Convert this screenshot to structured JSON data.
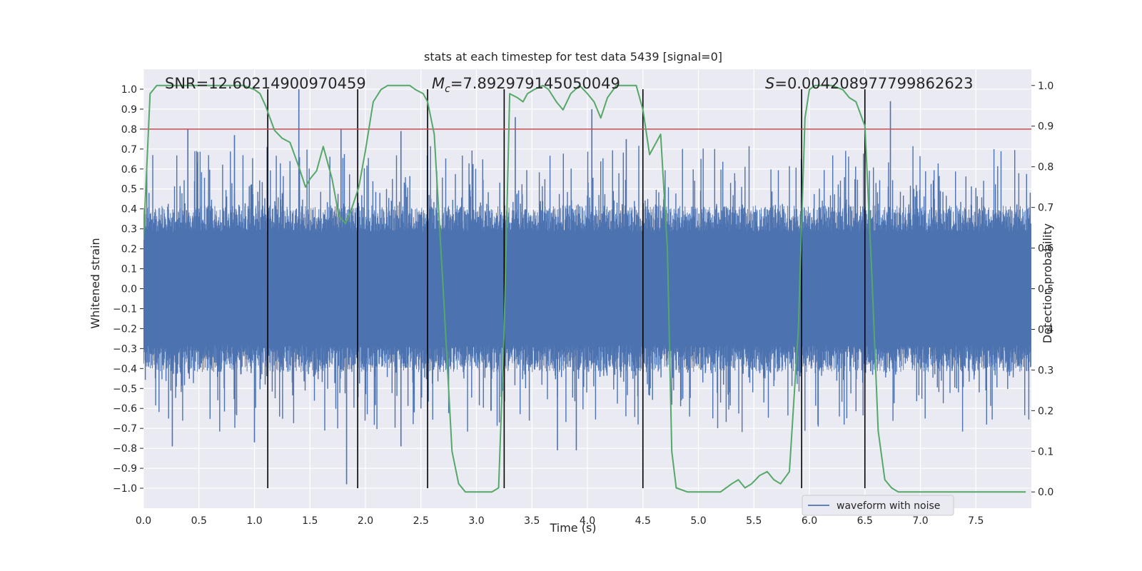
{
  "chart_data": {
    "type": "line",
    "title": "stats at each timestep for test data 5439 [signal=0]",
    "xlabel": "Time (s)",
    "ylabel": "Whitened strain",
    "y2label": "Detection probability",
    "xlim": [
      0,
      8
    ],
    "ylim": [
      -1.1,
      1.1
    ],
    "y2lim": [
      -0.04,
      1.04
    ],
    "x_ticks": [
      0.0,
      0.5,
      1.0,
      1.5,
      2.0,
      2.5,
      3.0,
      3.5,
      4.0,
      4.5,
      5.0,
      5.5,
      6.0,
      6.5,
      7.0,
      7.5
    ],
    "y_ticks": [
      -1.0,
      -0.9,
      -0.8,
      -0.7,
      -0.6,
      -0.5,
      -0.4,
      -0.3,
      -0.2,
      -0.1,
      0.0,
      0.1,
      0.2,
      0.3,
      0.4,
      0.5,
      0.6,
      0.7,
      0.8,
      0.9,
      1.0
    ],
    "y2_ticks": [
      0.0,
      0.1,
      0.2,
      0.3,
      0.4,
      0.5,
      0.6,
      0.7,
      0.8,
      0.9,
      1.0
    ],
    "grid": true,
    "legend": {
      "position": "lower-right",
      "entries": [
        "waveform with noise"
      ]
    },
    "annotations": {
      "snr": "SNR=12.60214900970459",
      "mc_symbol": "M",
      "mc_sub": "c",
      "mc_value": "=7.892979145050049",
      "s_symbol": "S",
      "s_value": "=0.004208977799862623"
    },
    "threshold": 0.8,
    "vlines": [
      1.12,
      1.93,
      2.56,
      3.25,
      4.5,
      5.93,
      6.5
    ],
    "series": [
      {
        "name": "waveform with noise",
        "color": "#4c72b0",
        "kind": "noise",
        "core_amplitude": 0.38,
        "peaks": [
          {
            "x": 0.4,
            "y": 0.8
          },
          {
            "x": 0.82,
            "y": 0.77
          },
          {
            "x": 1.4,
            "y": 1.0
          },
          {
            "x": 1.78,
            "y": 0.8
          },
          {
            "x": 2.32,
            "y": 0.79
          },
          {
            "x": 3.35,
            "y": 0.86
          },
          {
            "x": 4.04,
            "y": 0.9
          },
          {
            "x": 4.35,
            "y": 0.75
          },
          {
            "x": 6.73,
            "y": 0.94
          },
          {
            "x": 0.26,
            "y": -0.79
          },
          {
            "x": 1.0,
            "y": -0.77
          },
          {
            "x": 1.83,
            "y": -0.98
          },
          {
            "x": 2.32,
            "y": -0.79
          },
          {
            "x": 3.73,
            "y": -0.81
          },
          {
            "x": 3.9,
            "y": -0.81
          },
          {
            "x": 4.5,
            "y": -0.98
          }
        ]
      },
      {
        "name": "detection probability",
        "color": "#55a868",
        "axis": "right",
        "x": [
          0.0,
          0.06,
          0.12,
          0.2,
          0.3,
          0.4,
          0.5,
          0.6,
          0.7,
          0.8,
          0.9,
          1.0,
          1.05,
          1.1,
          1.18,
          1.25,
          1.32,
          1.4,
          1.46,
          1.5,
          1.56,
          1.62,
          1.7,
          1.76,
          1.82,
          1.88,
          1.94,
          2.0,
          2.07,
          2.14,
          2.2,
          2.3,
          2.4,
          2.45,
          2.52,
          2.56,
          2.62,
          2.7,
          2.78,
          2.84,
          2.9,
          3.0,
          3.1,
          3.14,
          3.2,
          3.25,
          3.3,
          3.37,
          3.42,
          3.46,
          3.52,
          3.6,
          3.65,
          3.72,
          3.78,
          3.85,
          3.93,
          4.0,
          4.06,
          4.12,
          4.18,
          4.26,
          4.36,
          4.44,
          4.5,
          4.56,
          4.62,
          4.66,
          4.72,
          4.76,
          4.8,
          4.9,
          5.0,
          5.1,
          5.2,
          5.3,
          5.36,
          5.42,
          5.48,
          5.55,
          5.62,
          5.68,
          5.74,
          5.82,
          5.9,
          5.96,
          6.0,
          6.05,
          6.1,
          6.2,
          6.3,
          6.36,
          6.42,
          6.5,
          6.56,
          6.62,
          6.68,
          6.74,
          6.8,
          6.9,
          7.0,
          7.1,
          7.2,
          7.3,
          7.4,
          7.5,
          7.6,
          7.7,
          7.8,
          7.9,
          7.95
        ],
        "values": [
          0.62,
          0.98,
          1.0,
          1.0,
          1.0,
          1.0,
          1.0,
          1.0,
          1.0,
          1.0,
          1.0,
          0.99,
          0.98,
          0.95,
          0.89,
          0.87,
          0.86,
          0.8,
          0.75,
          0.77,
          0.79,
          0.85,
          0.77,
          0.68,
          0.66,
          0.7,
          0.75,
          0.84,
          0.96,
          0.99,
          1.0,
          1.0,
          1.0,
          0.99,
          0.98,
          0.96,
          0.88,
          0.5,
          0.1,
          0.02,
          0.0,
          0.0,
          0.0,
          0.0,
          0.01,
          0.4,
          0.98,
          0.97,
          0.96,
          0.98,
          0.99,
          1.0,
          0.99,
          0.96,
          0.94,
          0.98,
          1.0,
          0.98,
          0.96,
          0.92,
          0.97,
          1.0,
          1.0,
          1.0,
          0.94,
          0.83,
          0.86,
          0.88,
          0.6,
          0.1,
          0.01,
          0.0,
          0.0,
          0.0,
          0.0,
          0.02,
          0.03,
          0.01,
          0.02,
          0.04,
          0.05,
          0.03,
          0.02,
          0.05,
          0.4,
          0.92,
          0.99,
          1.0,
          1.0,
          1.0,
          0.99,
          0.97,
          0.96,
          0.9,
          0.55,
          0.15,
          0.03,
          0.01,
          0.0,
          0.0,
          0.0,
          0.0,
          0.0,
          0.0,
          0.0,
          0.0,
          0.0,
          0.0,
          0.0,
          0.0,
          0.0
        ]
      }
    ]
  }
}
